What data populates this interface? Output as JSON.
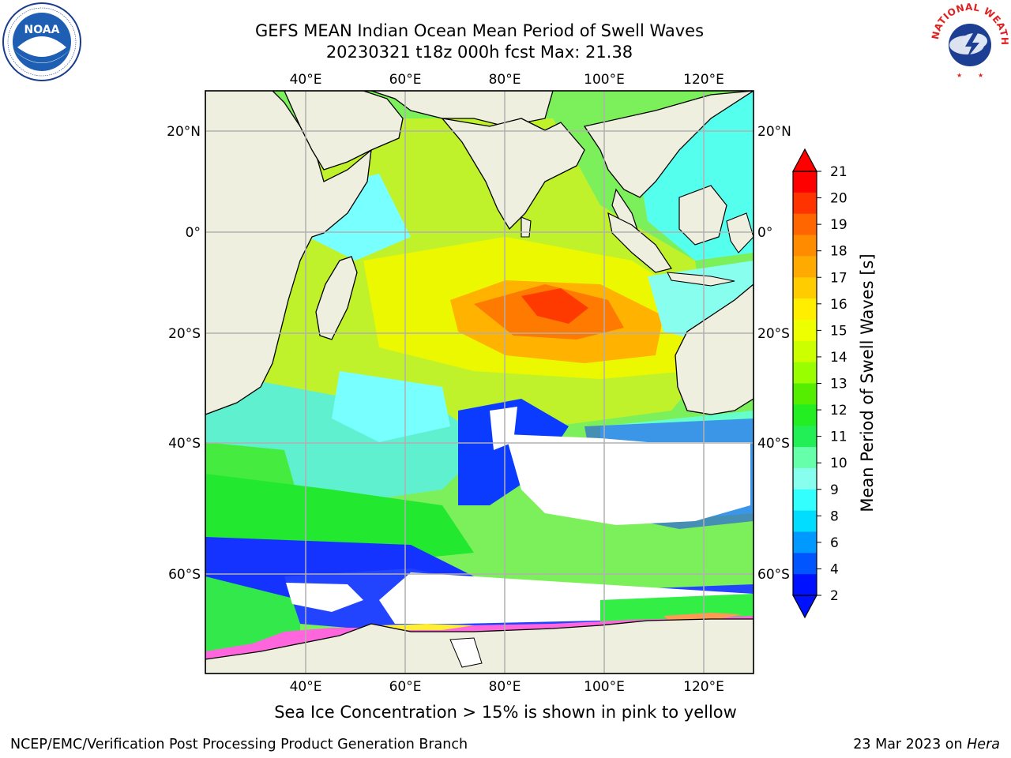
{
  "header": {
    "title_line1": "GEFS MEAN Indian Ocean Mean Period of Swell Waves",
    "title_line2": "20230321 t18z 000h fcst   Max: 21.38"
  },
  "logos": {
    "left": {
      "name": "noaa-logo",
      "text": "NOAA",
      "ring_text": "NATIONAL OCEANIC AND ATMOSPHERIC ADMINISTRATION · U.S. DEPARTMENT OF COMMERCE"
    },
    "right": {
      "name": "nws-logo",
      "ring_text": "NATIONAL WEATHER SERVICE"
    }
  },
  "map": {
    "region": "Indian Ocean",
    "lon_ticks_top": [
      "40°E",
      "60°E",
      "80°E",
      "100°E",
      "120°E"
    ],
    "lon_ticks_bottom": [
      "40°E",
      "60°E",
      "80°E",
      "100°E",
      "120°E"
    ],
    "lat_ticks_left": [
      "20°N",
      "0°",
      "20°S",
      "40°S",
      "60°S"
    ],
    "lat_ticks_right": [
      "20°N",
      "0°",
      "20°S",
      "40°S",
      "60°S"
    ],
    "grid": true,
    "colors": {
      "land": "#efefdf",
      "coast": "#000000",
      "grid": "#b0b0b0",
      "no_data": "#ffffff"
    }
  },
  "colorbar": {
    "label": "Mean Period of Swell Waves [s]",
    "ticks": [
      "21",
      "20",
      "19",
      "18",
      "17",
      "16",
      "15",
      "14",
      "13",
      "12",
      "11",
      "10",
      "9",
      "8",
      "6",
      "4",
      "2"
    ],
    "colors": [
      "#ff0000",
      "#ff3300",
      "#ff6600",
      "#ff8c00",
      "#ffaa00",
      "#ffcc00",
      "#ffee00",
      "#eeff00",
      "#ccff00",
      "#99ff00",
      "#55ee00",
      "#22ee22",
      "#22ee55",
      "#66ffaa",
      "#88ffee",
      "#33ffff",
      "#00ddff",
      "#0099ff",
      "#0055ff",
      "#0011ff"
    ],
    "extend": "both"
  },
  "footer": {
    "note": "Sea Ice Concentration > 15% is shown in pink to yellow",
    "credit": "NCEP/EMC/Verification Post Processing Product Generation Branch",
    "date": "23 Mar 2023 on ",
    "machine": "Hera"
  }
}
